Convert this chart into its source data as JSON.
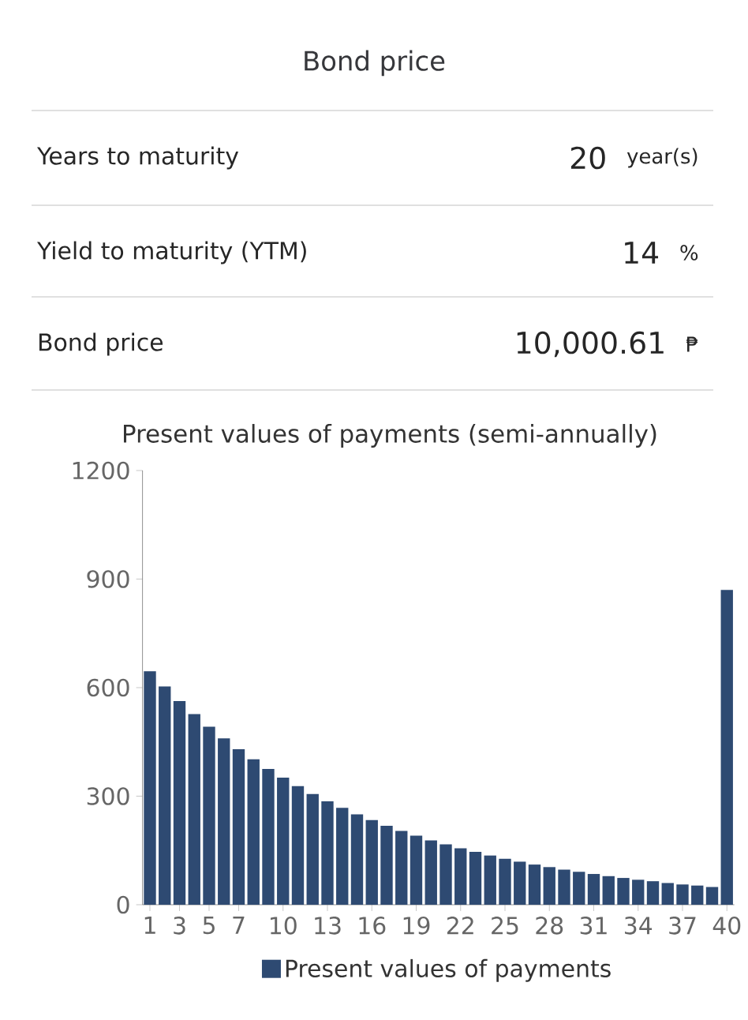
{
  "chart_data": {
    "type": "bar",
    "title": "Present values of payments (semi-annually)",
    "annotations": [
      "Bond price",
      "Years to maturity",
      "20",
      "year(s)",
      "Yield to maturity (YTM)",
      "14",
      "%",
      "Bond price",
      "10,000.61",
      "₱"
    ],
    "categories": [
      "1",
      null,
      "3",
      null,
      "5",
      null,
      "7",
      null,
      null,
      "10",
      null,
      null,
      "13",
      null,
      null,
      "16",
      null,
      null,
      "19",
      null,
      null,
      "22",
      null,
      null,
      "25",
      null,
      null,
      "28",
      null,
      null,
      "31",
      null,
      null,
      "34",
      null,
      null,
      "37",
      null,
      null,
      "40"
    ],
    "series": [
      {
        "name": "Present values of payments",
        "color": "#2e4a72",
        "values": [
          645,
          603,
          563,
          527,
          492,
          460,
          430,
          402,
          375,
          351,
          328,
          306,
          286,
          268,
          250,
          234,
          218,
          204,
          191,
          178,
          167,
          156,
          146,
          136,
          127,
          119,
          111,
          104,
          97,
          91,
          85,
          79,
          74,
          69,
          65,
          60,
          56,
          53,
          49,
          870
        ]
      }
    ],
    "ylim": [
      0,
      1200
    ],
    "yticks": [
      0,
      300,
      600,
      900,
      1200
    ],
    "legend": "bottom"
  }
}
